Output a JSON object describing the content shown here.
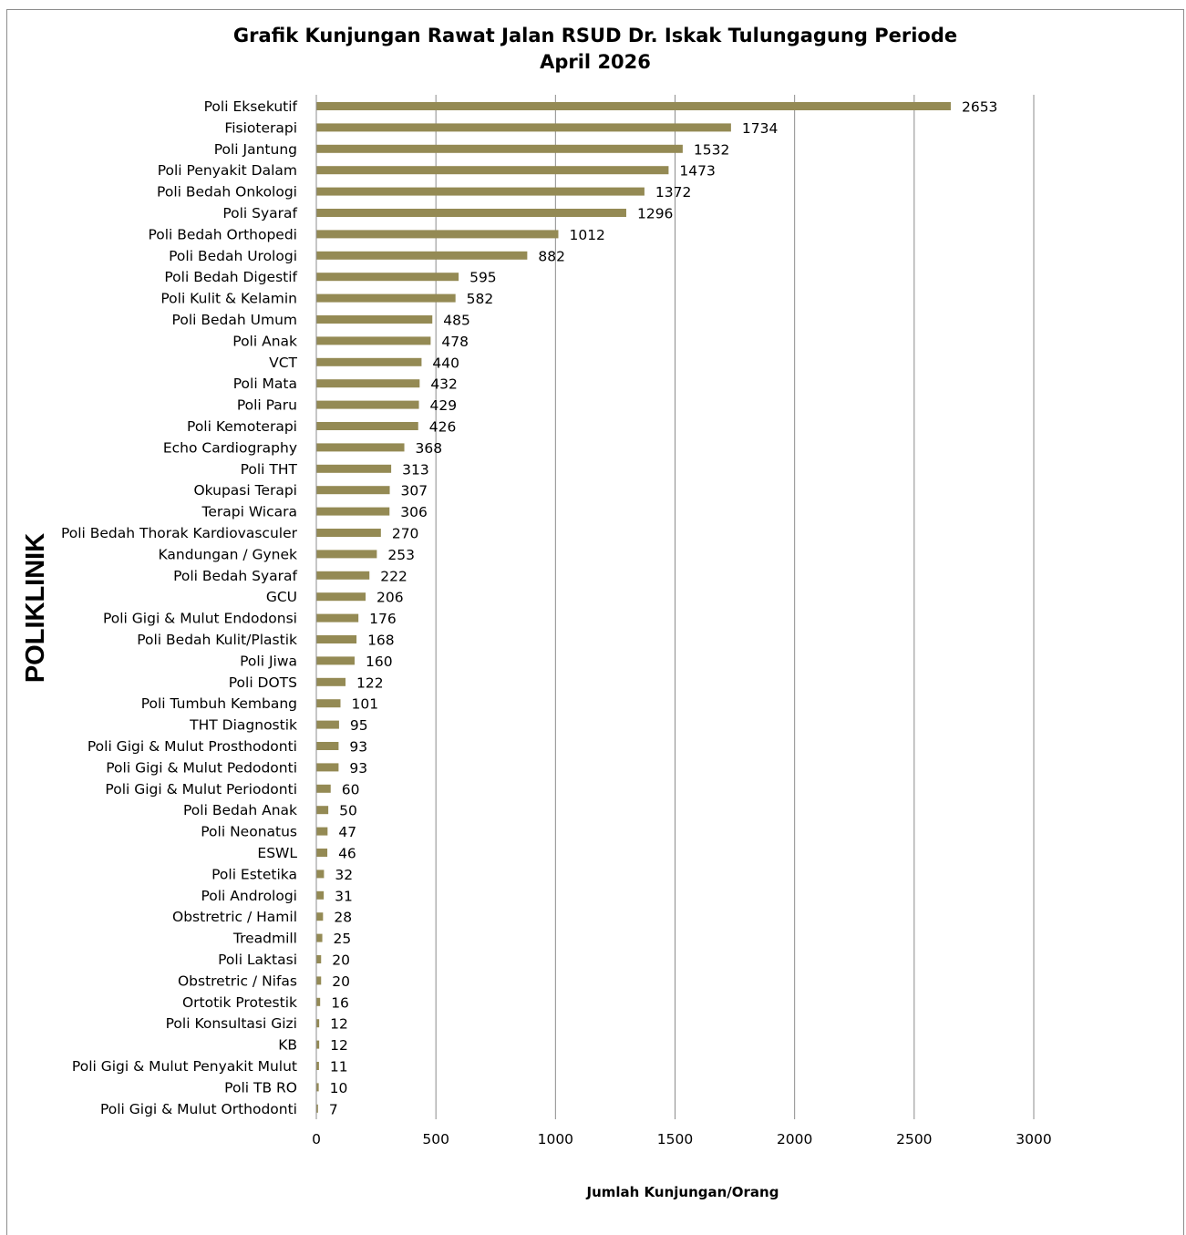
{
  "chart_data": {
    "type": "bar",
    "orientation": "horizontal",
    "title_line1": "Grafik Kunjungan Rawat Jalan RSUD Dr. Iskak Tulungagung Periode",
    "title_line2": "April 2026",
    "xlabel": "Jumlah Kunjungan/Orang",
    "ylabel": "POLIKLINIK",
    "xlim": [
      0,
      3000
    ],
    "xticks": [
      0,
      500,
      1000,
      1500,
      2000,
      2500,
      3000
    ],
    "grid": "vertical",
    "bar_color": "#948a54",
    "categories": [
      "Poli Eksekutif",
      "Fisioterapi",
      "Poli Jantung",
      "Poli Penyakit Dalam",
      "Poli Bedah Onkologi",
      "Poli Syaraf",
      "Poli Bedah Orthopedi",
      "Poli Bedah Urologi",
      "Poli Bedah Digestif",
      "Poli Kulit & Kelamin",
      "Poli Bedah Umum",
      "Poli Anak",
      "VCT",
      "Poli Mata",
      "Poli Paru",
      "Poli Kemoterapi",
      "Echo Cardiography",
      "Poli THT",
      "Okupasi Terapi",
      "Terapi Wicara",
      "Poli Bedah Thorak Kardiovasculer",
      "Kandungan / Gynek",
      "Poli Bedah Syaraf",
      "GCU",
      "Poli Gigi & Mulut Endodonsi",
      "Poli Bedah Kulit/Plastik",
      "Poli Jiwa",
      "Poli DOTS",
      "Poli Tumbuh Kembang",
      "THT Diagnostik",
      "Poli Gigi & Mulut Prosthodonti",
      "Poli Gigi & Mulut Pedodonti",
      "Poli Gigi & Mulut Periodonti",
      "Poli Bedah Anak",
      "Poli Neonatus",
      "ESWL",
      "Poli Estetika",
      "Poli Andrologi",
      "Obstretric / Hamil",
      "Treadmill",
      "Poli Laktasi",
      "Obstretric / Nifas",
      "Ortotik Protestik",
      "Poli Konsultasi Gizi",
      "KB",
      "Poli Gigi & Mulut Penyakit Mulut",
      "Poli TB RO",
      "Poli Gigi & Mulut Orthodonti"
    ],
    "values": [
      2653,
      1734,
      1532,
      1473,
      1372,
      1296,
      1012,
      882,
      595,
      582,
      485,
      478,
      440,
      432,
      429,
      426,
      368,
      313,
      307,
      306,
      270,
      253,
      222,
      206,
      176,
      168,
      160,
      122,
      101,
      95,
      93,
      93,
      60,
      50,
      47,
      46,
      32,
      31,
      28,
      25,
      20,
      20,
      16,
      12,
      12,
      11,
      10,
      7
    ]
  }
}
